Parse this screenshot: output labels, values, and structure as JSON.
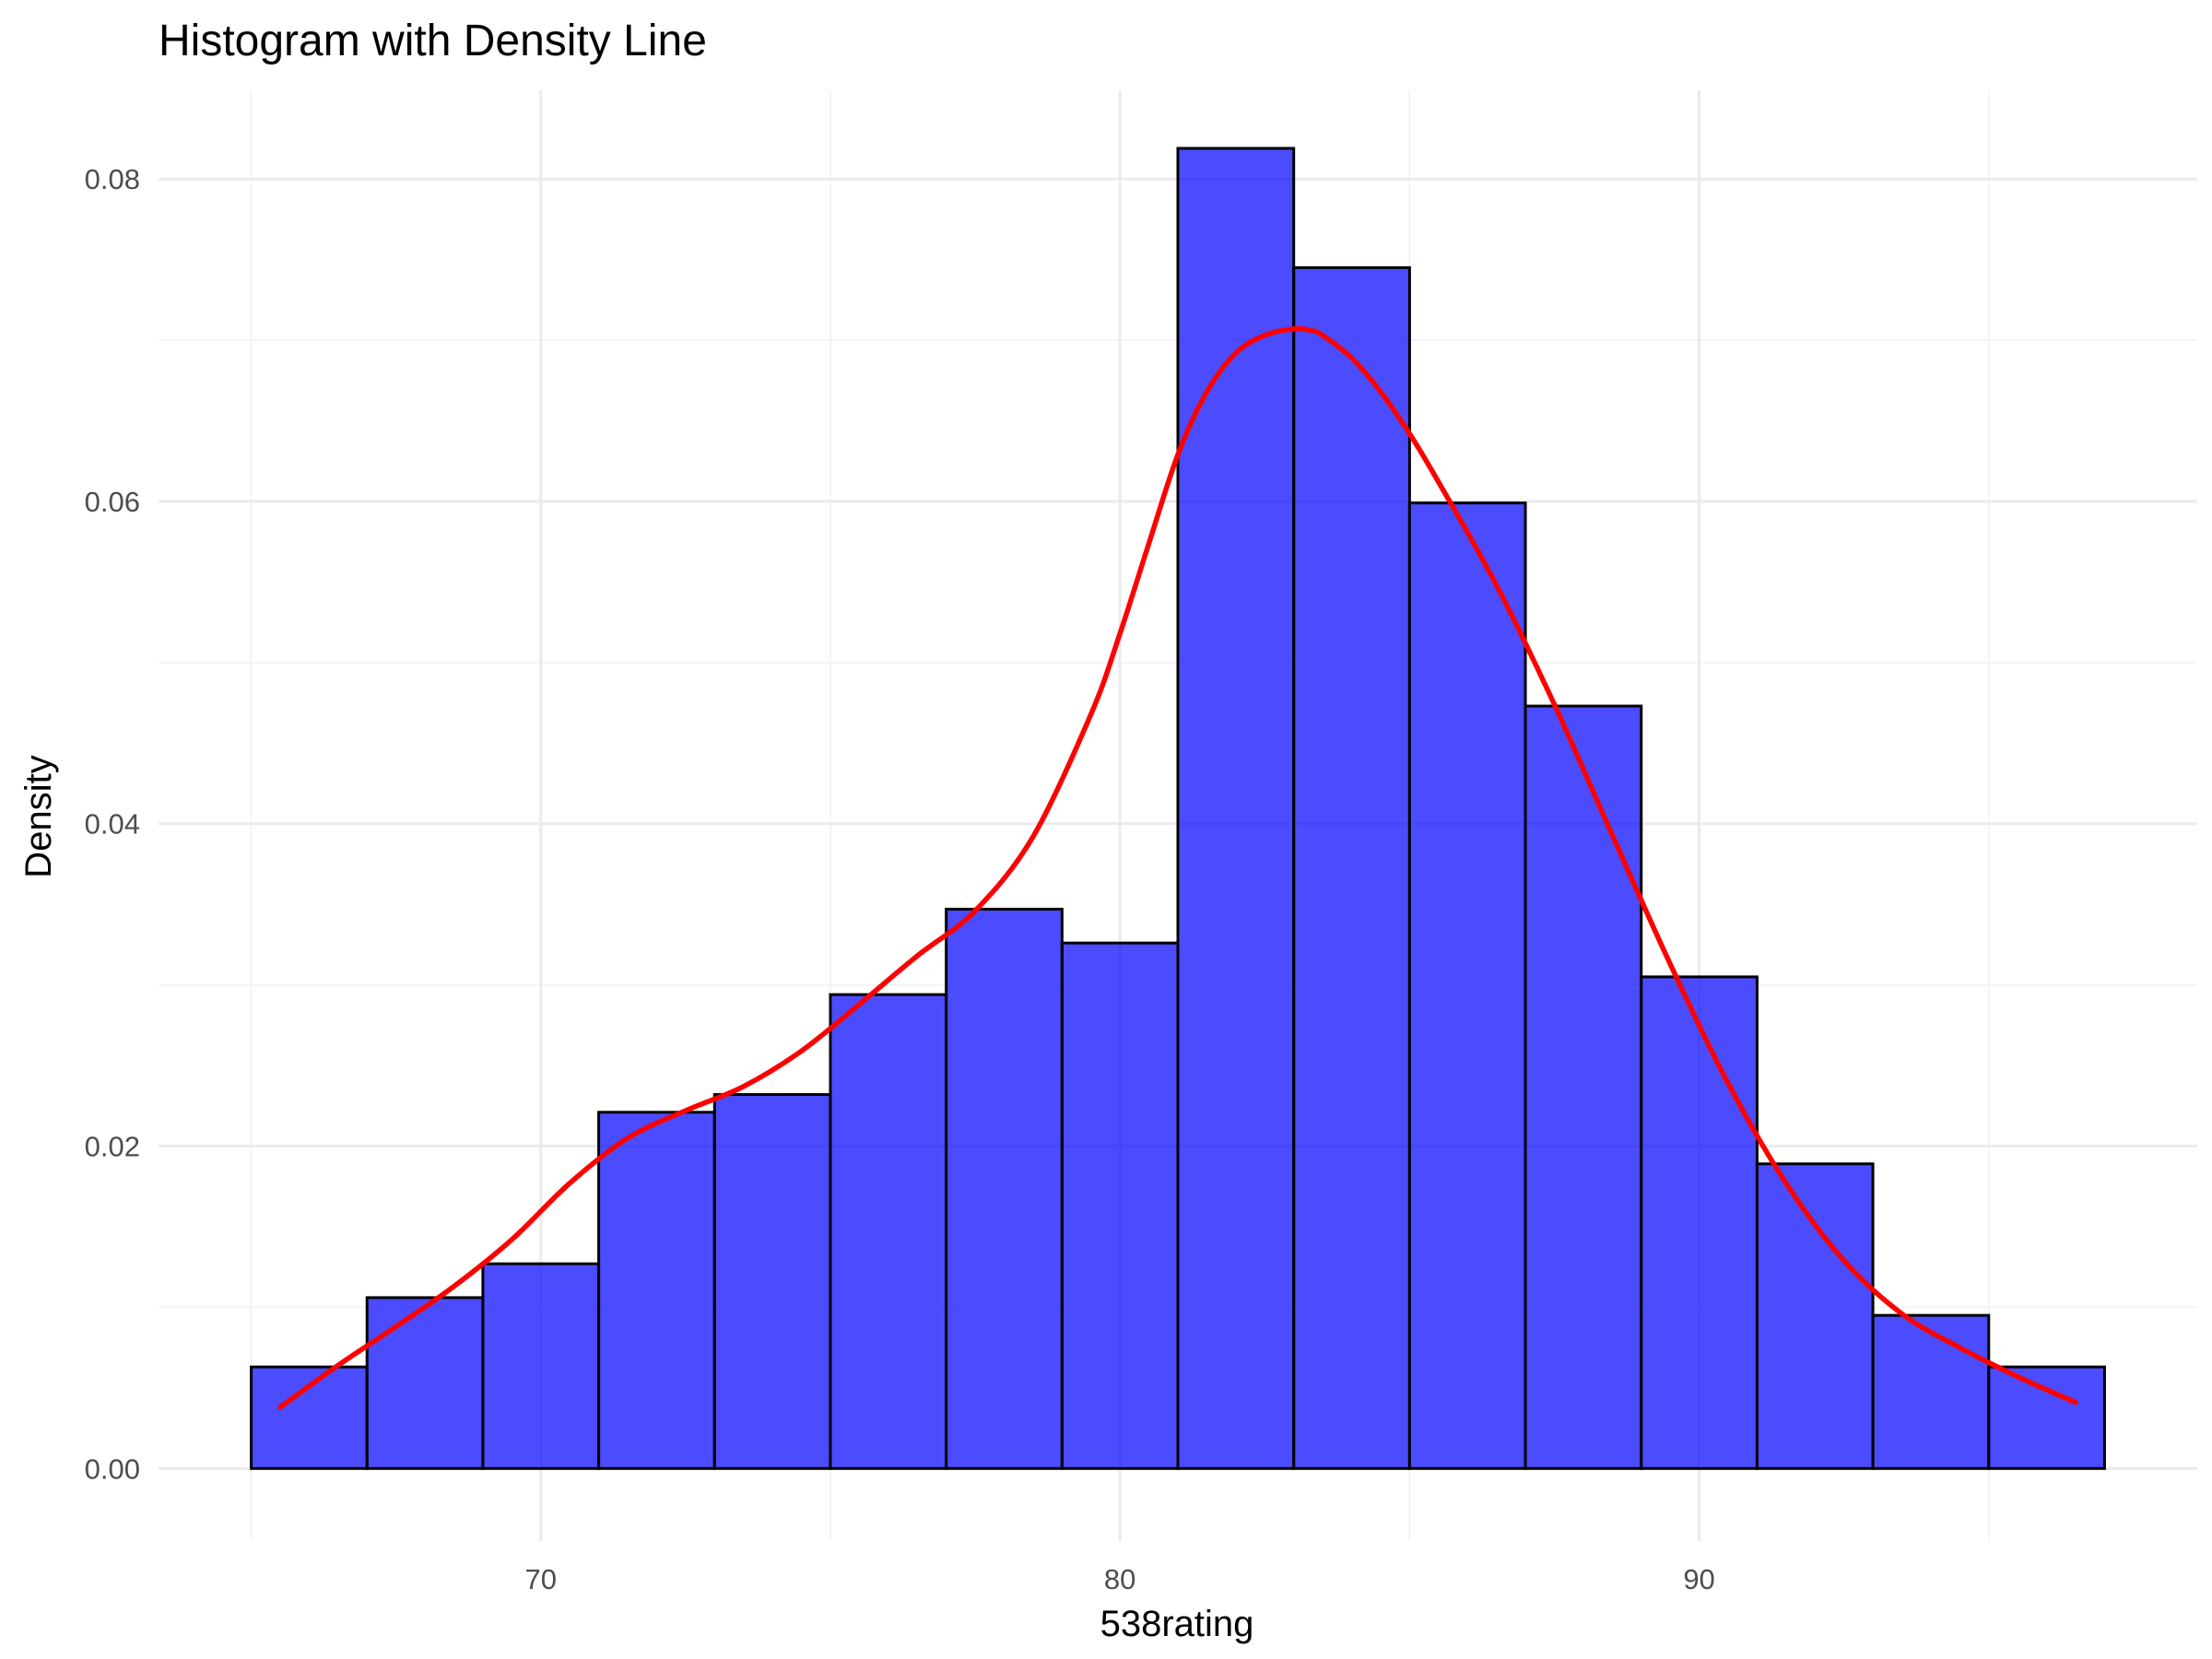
{
  "chart_data": {
    "type": "bar",
    "title": "Histogram with Density Line",
    "xlabel": "538rating",
    "ylabel": "Density",
    "xlim": [
      63.4,
      98.6
    ],
    "ylim": [
      -0.0045,
      0.0855
    ],
    "x_ticks": [
      70,
      80,
      90
    ],
    "x_tick_labels": [
      "70",
      "80",
      "90"
    ],
    "y_ticks": [
      0.0,
      0.02,
      0.04,
      0.06,
      0.08
    ],
    "y_tick_labels": [
      "0.00",
      "0.02",
      "0.04",
      "0.06",
      "0.08"
    ],
    "grid": true,
    "legend": "none",
    "bar_fill_color": "#0000FF",
    "bar_fill_opacity": 0.7,
    "bar_outline_color": "#000000",
    "density_color": "#FF0000",
    "bins": {
      "edges": [
        65,
        67,
        69,
        71,
        73,
        75,
        77,
        79,
        81,
        83,
        85,
        87,
        89,
        91,
        93,
        95,
        97
      ],
      "values": [
        0.0063,
        0.0106,
        0.0127,
        0.0221,
        0.0232,
        0.0294,
        0.0347,
        0.0326,
        0.0819,
        0.0745,
        0.0599,
        0.0473,
        0.0305,
        0.0189,
        0.0095,
        0.0063
      ]
    },
    "density_line": {
      "x": [
        65.5,
        66.5,
        67.5,
        68.5,
        69.5,
        70.5,
        71.5,
        72.5,
        73.5,
        74.5,
        75.5,
        76.5,
        77.5,
        78.5,
        79.5,
        80.0,
        80.5,
        81.0,
        81.5,
        82.0,
        82.5,
        83.0,
        83.3,
        83.5,
        84.0,
        84.5,
        85.0,
        85.5,
        86.5,
        87.5,
        88.5,
        89.5,
        90.5,
        91.5,
        92.5,
        93.5,
        94.5,
        95.5,
        96.5
      ],
      "y": [
        0.0038,
        0.0064,
        0.0088,
        0.0113,
        0.0142,
        0.0177,
        0.0205,
        0.0222,
        0.0237,
        0.0259,
        0.0288,
        0.0318,
        0.0346,
        0.0392,
        0.0468,
        0.0518,
        0.0574,
        0.0629,
        0.0668,
        0.0692,
        0.0703,
        0.0707,
        0.0706,
        0.0703,
        0.0689,
        0.0668,
        0.0642,
        0.0612,
        0.0548,
        0.0474,
        0.0393,
        0.0313,
        0.0239,
        0.0177,
        0.0129,
        0.0096,
        0.0075,
        0.0057,
        0.0041
      ]
    }
  }
}
